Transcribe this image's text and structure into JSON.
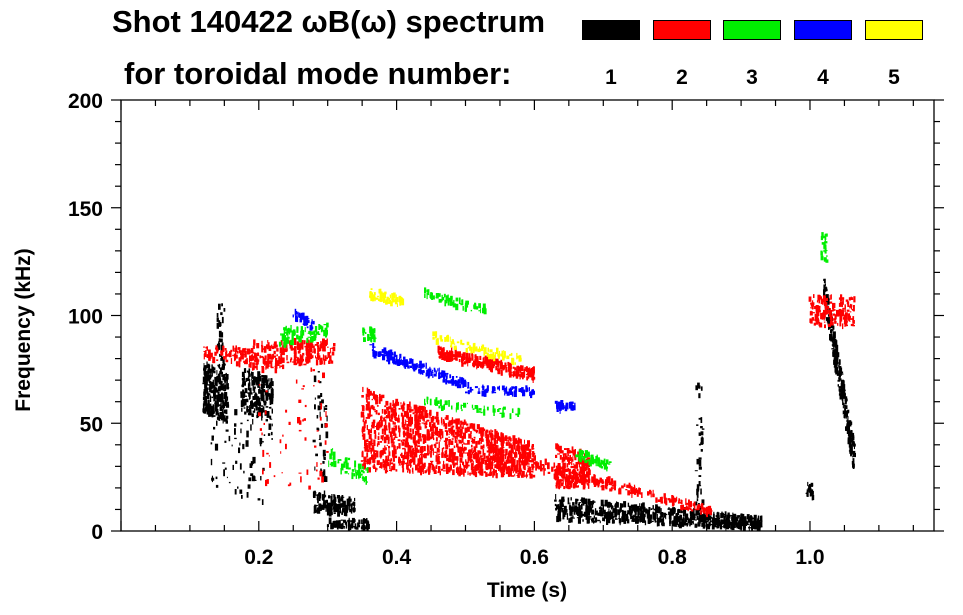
{
  "title": {
    "line1": "Shot 140422 ωB(ω) spectrum",
    "line2": "for toroidal mode number:"
  },
  "legend": [
    {
      "label": "1",
      "color": "#000000"
    },
    {
      "label": "2",
      "color": "#ff0000"
    },
    {
      "label": "3",
      "color": "#00ee00"
    },
    {
      "label": "4",
      "color": "#0000ff"
    },
    {
      "label": "5",
      "color": "#ffff00"
    }
  ],
  "chart_data": {
    "type": "heatmap",
    "title": "Shot 140422 ωB(ω) spectrum for toroidal mode number",
    "xlabel": "Time (s)",
    "ylabel": "Frequency (kHz)",
    "xlim": [
      0,
      1.18
    ],
    "ylim": [
      0,
      200
    ],
    "xticks": [
      "0.2",
      "0.4",
      "0.6",
      "0.8",
      "1.0"
    ],
    "xtick_values": [
      0.2,
      0.4,
      0.6,
      0.8,
      1.0
    ],
    "yticks": [
      "0",
      "50",
      "100",
      "150",
      "200"
    ],
    "ytick_values": [
      0,
      50,
      100,
      150,
      200
    ],
    "grid": false,
    "legend_placement": "top",
    "features": [
      {
        "mode": 1,
        "t": [
          0.12,
          0.155
        ],
        "f_start": [
          55,
          78
        ],
        "f_end": [
          50,
          72
        ],
        "density": 260
      },
      {
        "mode": 1,
        "t": [
          0.175,
          0.22
        ],
        "f_start": [
          55,
          76
        ],
        "f_end": [
          50,
          70
        ],
        "density": 200
      },
      {
        "mode": 1,
        "t": [
          0.13,
          0.22
        ],
        "f_start": [
          20,
          60
        ],
        "f_end": [
          10,
          55
        ],
        "density": 80
      },
      {
        "mode": 1,
        "t": [
          0.14,
          0.15
        ],
        "f_start": [
          70,
          105
        ],
        "f_end": [
          70,
          105
        ],
        "density": 40
      },
      {
        "mode": 1,
        "t": [
          0.28,
          0.34
        ],
        "f_start": [
          8,
          18
        ],
        "f_end": [
          8,
          15
        ],
        "density": 140
      },
      {
        "mode": 1,
        "t": [
          0.3,
          0.36
        ],
        "f_start": [
          1,
          5
        ],
        "f_end": [
          1,
          5
        ],
        "density": 70
      },
      {
        "mode": 1,
        "t": [
          0.28,
          0.3
        ],
        "f_start": [
          25,
          90
        ],
        "f_end": [
          20,
          60
        ],
        "density": 40
      },
      {
        "mode": 1,
        "t": [
          0.63,
          0.93
        ],
        "f_start": [
          5,
          16
        ],
        "f_end": [
          1,
          6
        ],
        "density": 700
      },
      {
        "mode": 1,
        "t": [
          0.835,
          0.845
        ],
        "f_start": [
          10,
          70
        ],
        "f_end": [
          10,
          70
        ],
        "density": 40
      },
      {
        "mode": 1,
        "t": [
          1.02,
          1.065
        ],
        "f_start": [
          105,
          120
        ],
        "f_end": [
          25,
          40
        ],
        "density": 260
      },
      {
        "mode": 1,
        "t": [
          0.995,
          1.005
        ],
        "f_start": [
          15,
          22
        ],
        "f_end": [
          15,
          22
        ],
        "density": 20
      },
      {
        "mode": 2,
        "t": [
          0.12,
          0.2
        ],
        "f_start": [
          80,
          86
        ],
        "f_end": [
          76,
          84
        ],
        "density": 100
      },
      {
        "mode": 2,
        "t": [
          0.19,
          0.31
        ],
        "f_start": [
          75,
          88
        ],
        "f_end": [
          78,
          88
        ],
        "density": 220
      },
      {
        "mode": 2,
        "t": [
          0.2,
          0.3
        ],
        "f_start": [
          20,
          75
        ],
        "f_end": [
          20,
          75
        ],
        "density": 60
      },
      {
        "mode": 2,
        "t": [
          0.35,
          0.6
        ],
        "f_start": [
          28,
          66
        ],
        "f_end": [
          25,
          40
        ],
        "density": 1300
      },
      {
        "mode": 2,
        "t": [
          0.46,
          0.6
        ],
        "f_start": [
          80,
          86
        ],
        "f_end": [
          70,
          75
        ],
        "density": 260
      },
      {
        "mode": 2,
        "t": [
          0.63,
          0.68
        ],
        "f_start": [
          20,
          40
        ],
        "f_end": [
          20,
          36
        ],
        "density": 200
      },
      {
        "mode": 2,
        "t": [
          0.6,
          0.86
        ],
        "f_start": [
          28,
          34
        ],
        "f_end": [
          7,
          10
        ],
        "density": 200
      },
      {
        "mode": 2,
        "t": [
          1.0,
          1.065
        ],
        "f_start": [
          95,
          110
        ],
        "f_end": [
          95,
          108
        ],
        "density": 160
      },
      {
        "mode": 3,
        "t": [
          0.23,
          0.3
        ],
        "f_start": [
          86,
          94
        ],
        "f_end": [
          90,
          96
        ],
        "density": 80
      },
      {
        "mode": 3,
        "t": [
          0.35,
          0.37
        ],
        "f_start": [
          88,
          94
        ],
        "f_end": [
          88,
          94
        ],
        "density": 30
      },
      {
        "mode": 3,
        "t": [
          0.44,
          0.53
        ],
        "f_start": [
          108,
          112
        ],
        "f_end": [
          100,
          104
        ],
        "density": 60
      },
      {
        "mode": 3,
        "t": [
          0.3,
          0.36
        ],
        "f_start": [
          30,
          40
        ],
        "f_end": [
          22,
          28
        ],
        "density": 60
      },
      {
        "mode": 3,
        "t": [
          0.44,
          0.58
        ],
        "f_start": [
          58,
          62
        ],
        "f_end": [
          52,
          56
        ],
        "density": 60
      },
      {
        "mode": 3,
        "t": [
          0.66,
          0.71
        ],
        "f_start": [
          33,
          38
        ],
        "f_end": [
          28,
          32
        ],
        "density": 60
      },
      {
        "mode": 3,
        "t": [
          1.015,
          1.025
        ],
        "f_start": [
          125,
          138
        ],
        "f_end": [
          125,
          138
        ],
        "density": 20
      },
      {
        "mode": 4,
        "t": [
          0.25,
          0.28
        ],
        "f_start": [
          98,
          103
        ],
        "f_end": [
          93,
          98
        ],
        "density": 40
      },
      {
        "mode": 4,
        "t": [
          0.36,
          0.5
        ],
        "f_start": [
          82,
          87
        ],
        "f_end": [
          66,
          70
        ],
        "density": 180
      },
      {
        "mode": 4,
        "t": [
          0.5,
          0.6
        ],
        "f_start": [
          64,
          68
        ],
        "f_end": [
          63,
          66
        ],
        "density": 70
      },
      {
        "mode": 4,
        "t": [
          0.63,
          0.66
        ],
        "f_start": [
          55,
          60
        ],
        "f_end": [
          55,
          60
        ],
        "density": 30
      },
      {
        "mode": 5,
        "t": [
          0.36,
          0.41
        ],
        "f_start": [
          108,
          113
        ],
        "f_end": [
          104,
          108
        ],
        "density": 60
      },
      {
        "mode": 5,
        "t": [
          0.45,
          0.58
        ],
        "f_start": [
          88,
          92
        ],
        "f_end": [
          77,
          81
        ],
        "density": 80
      }
    ]
  }
}
